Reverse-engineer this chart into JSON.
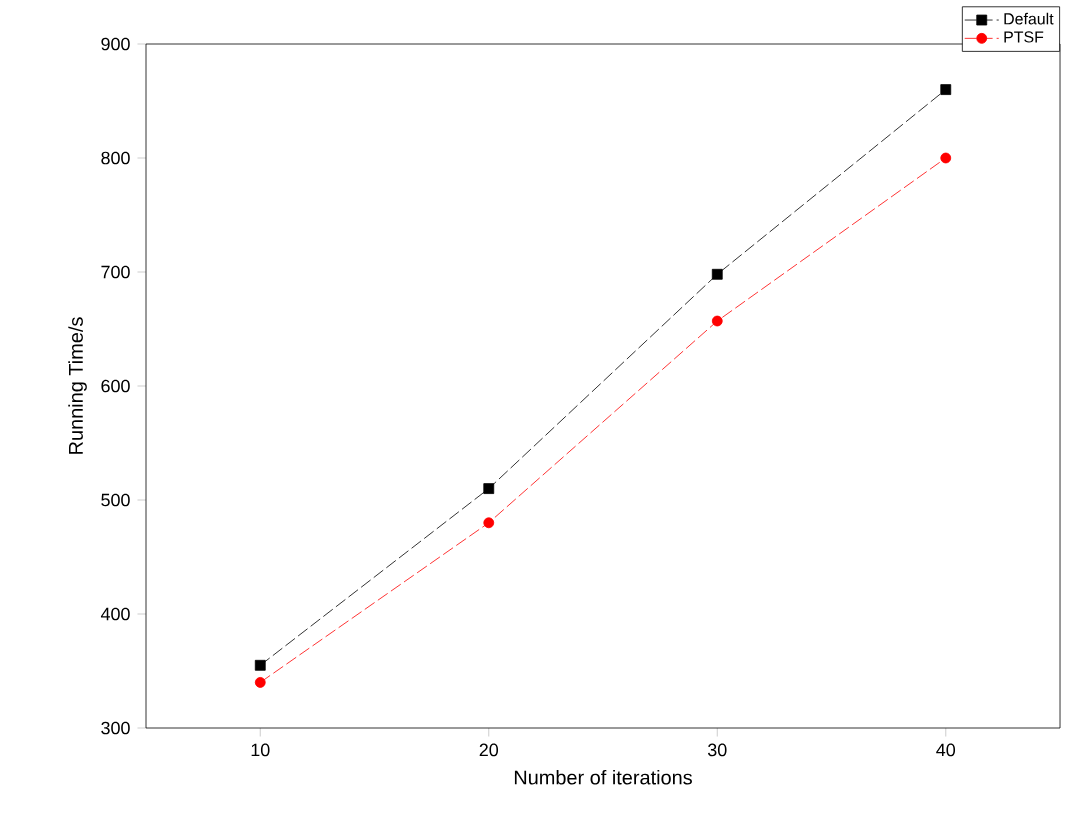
{
  "chart_data": {
    "type": "line",
    "xlabel": "Number of iterations",
    "ylabel": "Running Time/s",
    "x": [
      10,
      20,
      30,
      40
    ],
    "xlim": [
      5,
      45
    ],
    "xticks": [
      10,
      20,
      30,
      40
    ],
    "ylim": [
      300,
      900
    ],
    "yticks": [
      300,
      400,
      500,
      600,
      700,
      800,
      900
    ],
    "series": [
      {
        "name": "Default",
        "color": "#000000",
        "values": [
          355,
          510,
          698,
          860
        ],
        "marker": "square"
      },
      {
        "name": "PTSF",
        "color": "#ff0000",
        "values": [
          340,
          480,
          657,
          800
        ],
        "marker": "circle"
      }
    ],
    "line_style": "dashed",
    "legend": "top right",
    "grid": false
  }
}
